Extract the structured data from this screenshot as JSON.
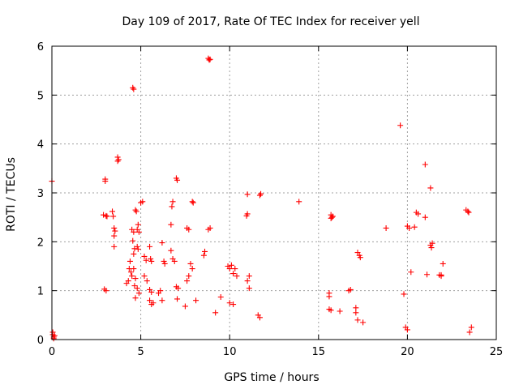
{
  "chart_data": {
    "type": "scatter",
    "title": "Day 109 of 2017, Rate Of TEC Index for receiver yell",
    "xlabel": "GPS time / hours",
    "ylabel": "ROTI / TECUs",
    "xlim": [
      0,
      25
    ],
    "ylim": [
      0,
      6
    ],
    "xticks": [
      "0",
      "5",
      "10",
      "15",
      "20",
      "25"
    ],
    "yticks": [
      "0",
      "1",
      "2",
      "3",
      "4",
      "5",
      "6"
    ],
    "grid": true,
    "marker": "plus",
    "color": "#ff0000",
    "series": [
      {
        "points": [
          [
            0.0,
            3.24
          ],
          [
            0.05,
            0.15
          ],
          [
            0.1,
            0.05
          ],
          [
            0.05,
            0.1
          ],
          [
            0.15,
            0.08
          ],
          [
            0.1,
            0.02
          ],
          [
            3.0,
            3.28
          ],
          [
            3.0,
            3.24
          ],
          [
            2.9,
            2.55
          ],
          [
            3.05,
            2.53
          ],
          [
            3.1,
            2.52
          ],
          [
            2.95,
            1.03
          ],
          [
            3.05,
            1.0
          ],
          [
            3.4,
            2.62
          ],
          [
            3.45,
            2.52
          ],
          [
            3.5,
            2.28
          ],
          [
            3.55,
            2.22
          ],
          [
            3.5,
            2.12
          ],
          [
            3.5,
            1.9
          ],
          [
            3.7,
            3.73
          ],
          [
            3.75,
            3.68
          ],
          [
            3.7,
            3.65
          ],
          [
            4.55,
            5.15
          ],
          [
            4.6,
            5.12
          ],
          [
            4.5,
            2.25
          ],
          [
            4.6,
            2.2
          ],
          [
            4.55,
            2.02
          ],
          [
            4.65,
            1.86
          ],
          [
            4.6,
            1.75
          ],
          [
            4.7,
            2.65
          ],
          [
            4.75,
            2.62
          ],
          [
            4.85,
            2.35
          ],
          [
            4.8,
            2.25
          ],
          [
            4.9,
            2.2
          ],
          [
            4.8,
            1.9
          ],
          [
            4.85,
            1.85
          ],
          [
            4.4,
            1.6
          ],
          [
            4.35,
            1.45
          ],
          [
            4.45,
            1.38
          ],
          [
            4.5,
            1.3
          ],
          [
            4.6,
            1.45
          ],
          [
            4.7,
            1.25
          ],
          [
            4.65,
            1.1
          ],
          [
            4.3,
            1.2
          ],
          [
            4.2,
            1.15
          ],
          [
            4.8,
            1.05
          ],
          [
            4.9,
            0.95
          ],
          [
            4.7,
            0.85
          ],
          [
            5.0,
            2.8
          ],
          [
            5.1,
            2.82
          ],
          [
            5.2,
            1.7
          ],
          [
            5.3,
            1.62
          ],
          [
            5.2,
            1.3
          ],
          [
            5.35,
            1.2
          ],
          [
            5.5,
            1.9
          ],
          [
            5.55,
            1.65
          ],
          [
            5.6,
            1.6
          ],
          [
            5.5,
            1.02
          ],
          [
            5.6,
            0.97
          ],
          [
            5.7,
            0.75
          ],
          [
            5.5,
            0.8
          ],
          [
            5.6,
            0.72
          ],
          [
            6.2,
            1.98
          ],
          [
            6.3,
            1.6
          ],
          [
            6.35,
            1.55
          ],
          [
            6.1,
            1.0
          ],
          [
            6.0,
            0.95
          ],
          [
            6.2,
            0.8
          ],
          [
            6.8,
            2.82
          ],
          [
            6.75,
            2.72
          ],
          [
            6.7,
            2.35
          ],
          [
            6.7,
            1.82
          ],
          [
            6.8,
            1.65
          ],
          [
            6.9,
            1.6
          ],
          [
            7.0,
            3.3
          ],
          [
            7.05,
            3.26
          ],
          [
            7.0,
            1.08
          ],
          [
            7.1,
            1.05
          ],
          [
            7.05,
            0.83
          ],
          [
            7.6,
            2.28
          ],
          [
            7.7,
            2.25
          ],
          [
            7.8,
            1.55
          ],
          [
            7.9,
            1.45
          ],
          [
            7.7,
            1.3
          ],
          [
            7.6,
            1.2
          ],
          [
            7.9,
            2.82
          ],
          [
            7.95,
            2.8
          ],
          [
            7.5,
            0.68
          ],
          [
            8.1,
            0.8
          ],
          [
            8.6,
            1.8
          ],
          [
            8.55,
            1.72
          ],
          [
            8.8,
            5.75
          ],
          [
            8.9,
            5.73
          ],
          [
            8.85,
            5.72
          ],
          [
            8.9,
            2.28
          ],
          [
            8.8,
            2.25
          ],
          [
            9.2,
            0.55
          ],
          [
            9.5,
            0.87
          ],
          [
            9.9,
            1.5
          ],
          [
            10.0,
            1.45
          ],
          [
            10.1,
            1.52
          ],
          [
            10.3,
            1.45
          ],
          [
            10.2,
            1.35
          ],
          [
            10.4,
            1.3
          ],
          [
            10.0,
            0.75
          ],
          [
            10.2,
            0.72
          ],
          [
            11.0,
            2.97
          ],
          [
            11.0,
            2.57
          ],
          [
            10.95,
            2.53
          ],
          [
            11.1,
            1.3
          ],
          [
            11.0,
            1.2
          ],
          [
            11.1,
            1.05
          ],
          [
            11.7,
            2.95
          ],
          [
            11.75,
            2.98
          ],
          [
            11.6,
            0.5
          ],
          [
            11.7,
            0.45
          ],
          [
            13.9,
            2.82
          ],
          [
            15.7,
            2.55
          ],
          [
            15.75,
            2.5
          ],
          [
            15.8,
            2.52
          ],
          [
            15.7,
            2.48
          ],
          [
            15.6,
            0.95
          ],
          [
            15.6,
            0.88
          ],
          [
            15.6,
            0.62
          ],
          [
            15.7,
            0.6
          ],
          [
            16.2,
            0.58
          ],
          [
            16.8,
            1.02
          ],
          [
            16.7,
            1.0
          ],
          [
            17.1,
            0.65
          ],
          [
            17.1,
            0.55
          ],
          [
            17.2,
            0.4
          ],
          [
            17.5,
            0.35
          ],
          [
            17.2,
            1.78
          ],
          [
            17.3,
            1.72
          ],
          [
            17.35,
            1.68
          ],
          [
            18.8,
            2.28
          ],
          [
            19.6,
            4.38
          ],
          [
            19.8,
            0.93
          ],
          [
            20.0,
            2.32
          ],
          [
            20.1,
            2.28
          ],
          [
            20.2,
            1.38
          ],
          [
            19.9,
            0.25
          ],
          [
            20.0,
            0.2
          ],
          [
            20.5,
            2.6
          ],
          [
            20.6,
            2.57
          ],
          [
            20.4,
            2.3
          ],
          [
            21.0,
            3.58
          ],
          [
            21.0,
            2.5
          ],
          [
            21.1,
            1.33
          ],
          [
            21.3,
            3.1
          ],
          [
            21.3,
            1.93
          ],
          [
            21.35,
            1.88
          ],
          [
            21.4,
            1.97
          ],
          [
            21.8,
            1.32
          ],
          [
            21.9,
            1.3
          ],
          [
            22.0,
            1.55
          ],
          [
            21.9,
            1.32
          ],
          [
            23.3,
            2.65
          ],
          [
            23.4,
            2.62
          ],
          [
            23.45,
            2.6
          ],
          [
            23.6,
            0.25
          ],
          [
            23.5,
            0.15
          ]
        ]
      }
    ]
  }
}
